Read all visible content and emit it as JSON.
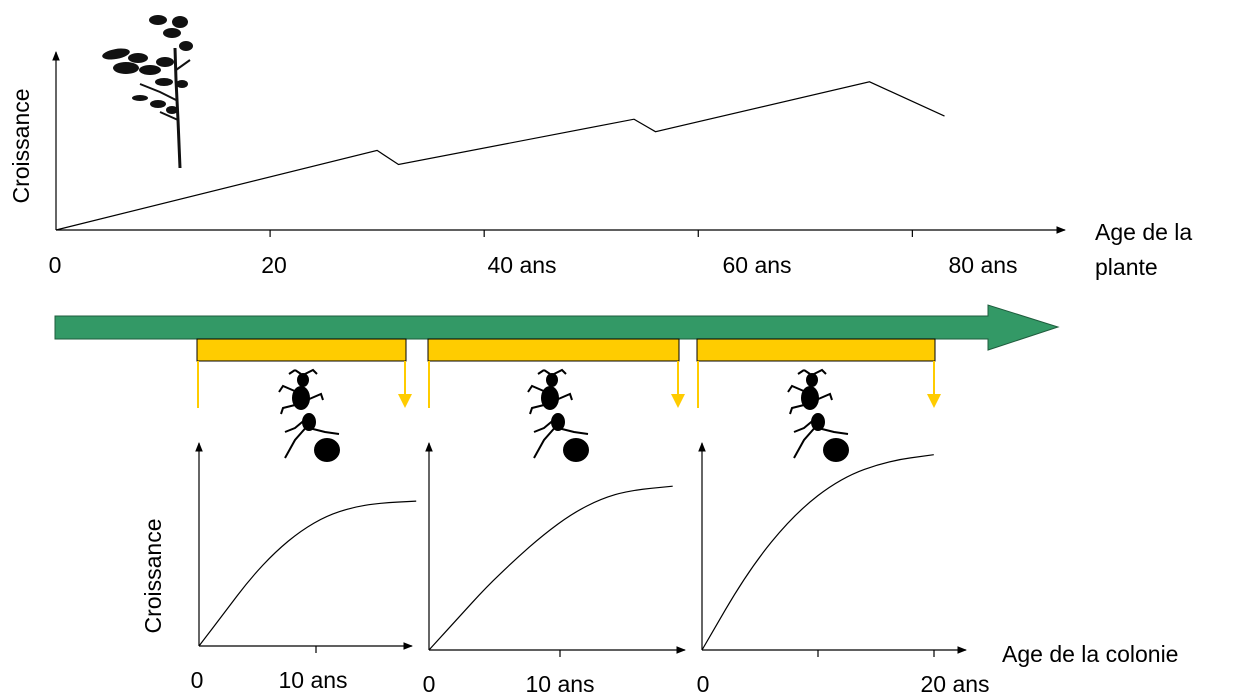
{
  "top_chart": {
    "ylabel": "Croissance",
    "xlabel_line1": "Age de la",
    "xlabel_line2": "plante",
    "tick_labels": [
      "0",
      "20",
      "40 ans",
      "60 ans",
      "80 ans"
    ]
  },
  "colonies": [
    {
      "ylabel": "Croissance",
      "tick_labels": [
        "0",
        "10 ans"
      ]
    },
    {
      "tick_labels": [
        "0",
        "10 ans"
      ]
    },
    {
      "tick_labels": [
        "0",
        "20 ans"
      ]
    }
  ],
  "colony_xlabel": "Age de la colonie",
  "icons": {
    "plant": "plant-silhouette-icon",
    "ant": "ant-silhouette-icon"
  },
  "colors": {
    "timeline_arrow": "#339966",
    "colony_bar": "#FFCC00",
    "colony_arrow": "#FFCC00",
    "ink": "#000000"
  },
  "chart_data": [
    {
      "type": "line",
      "ylabel": "Croissance",
      "xlabel": "Age de la plante",
      "x": [
        0,
        30,
        32,
        54,
        56,
        76,
        83
      ],
      "y": [
        0,
        0.51,
        0.42,
        0.71,
        0.63,
        0.95,
        0.73
      ],
      "xlim": [
        0,
        85
      ],
      "ylim": [
        0,
        1
      ]
    },
    {
      "type": "line",
      "ylabel": "Croissance",
      "xlabel": "Age de la colonie",
      "x": [
        0,
        2,
        4,
        6,
        8,
        10,
        12,
        14,
        17
      ],
      "y": [
        0,
        0.16,
        0.32,
        0.45,
        0.55,
        0.62,
        0.66,
        0.68,
        0.69
      ],
      "xlim": [
        0,
        18
      ],
      "ylim": [
        0,
        1
      ]
    },
    {
      "type": "line",
      "xlabel": "Age de la colonie",
      "x": [
        0,
        2,
        4,
        6,
        8,
        10,
        12,
        14,
        17
      ],
      "y": [
        0,
        0.15,
        0.3,
        0.43,
        0.55,
        0.65,
        0.72,
        0.76,
        0.78
      ],
      "xlim": [
        0,
        18
      ],
      "ylim": [
        0,
        1
      ]
    },
    {
      "type": "line",
      "xlabel": "Age de la colonie",
      "x": [
        0,
        4,
        8,
        12,
        16,
        20
      ],
      "y": [
        0,
        0.38,
        0.65,
        0.82,
        0.9,
        0.93
      ],
      "xlim": [
        0,
        22
      ],
      "ylim": [
        0,
        1
      ]
    }
  ]
}
